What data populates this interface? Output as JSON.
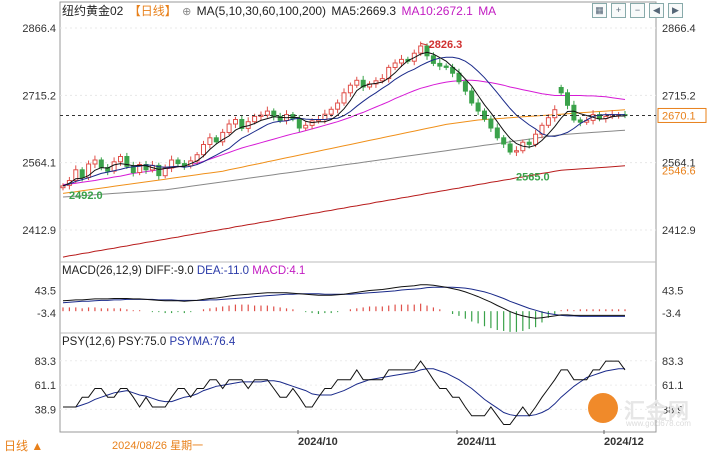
{
  "header": {
    "symbol": "纽约黄金02",
    "period": "【日线】",
    "add_icon": "plus-circle-icon",
    "ma_label": "MA(5,10,30,60,100,200)",
    "ma5": "MA5:2669.3",
    "ma10": "MA10:2672.1",
    "ma_tail": "MA"
  },
  "toolbar": {
    "icons": [
      "grid-icon",
      "zoom-in-icon",
      "zoom-out-icon",
      "chevron-left-icon",
      "chevron-right-icon"
    ]
  },
  "macd_header": {
    "name": "MACD(26,12,9)",
    "dif": "DIFF:-9.0",
    "dea": "DEA:-11.0",
    "macd": "MACD:4.1"
  },
  "psy_header": {
    "name": "PSY(12,6)",
    "psy": "PSY:75.0",
    "psyma": "PSYMA:76.4"
  },
  "footer": {
    "period": "日线",
    "cursor_date": "2024/08/26 星期一",
    "x_labels": [
      "2024/10",
      "2024/11",
      "2024/12"
    ]
  },
  "logo": {
    "text": "汇金网",
    "url_text": "www.gold678.com"
  },
  "colors": {
    "up": "#e0504a",
    "down": "#3aa24a",
    "ma5": "#111111",
    "ma10": "#1a2a8a",
    "ma30": "#d61ad6",
    "ma60": "#f0901a",
    "ma100": "#888888",
    "ma200": "#b81c1c",
    "current": "#e8801a"
  },
  "chart_data": [
    {
      "type": "candlestick",
      "y_ticks": [
        "2866.4",
        "2715.2",
        "2564.1",
        "2412.9"
      ],
      "ylim": [
        2350,
        2880
      ],
      "current_price": "2670.1",
      "ma200_label": "2546.6",
      "annotations": {
        "high": "2826.3",
        "low": "2565.0",
        "start_low": "2492.0"
      },
      "closes": [
        2512,
        2524,
        2548,
        2531,
        2561,
        2570,
        2553,
        2545,
        2566,
        2578,
        2556,
        2542,
        2560,
        2548,
        2558,
        2535,
        2552,
        2570,
        2562,
        2557,
        2568,
        2582,
        2605,
        2620,
        2611,
        2632,
        2651,
        2661,
        2641,
        2656,
        2668,
        2671,
        2680,
        2668,
        2659,
        2672,
        2663,
        2642,
        2648,
        2658,
        2661,
        2673,
        2684,
        2698,
        2721,
        2738,
        2749,
        2734,
        2741,
        2748,
        2753,
        2778,
        2788,
        2796,
        2792,
        2810,
        2826,
        2804,
        2787,
        2781,
        2778,
        2765,
        2746,
        2725,
        2698,
        2680,
        2662,
        2642,
        2620,
        2606,
        2588,
        2591,
        2610,
        2605,
        2628,
        2648,
        2665,
        2683,
        2721,
        2693,
        2660,
        2655,
        2659,
        2672,
        2663,
        2668,
        2672,
        2672,
        2670
      ],
      "opens": [
        2508,
        2513,
        2524,
        2548,
        2531,
        2561,
        2570,
        2553,
        2545,
        2566,
        2578,
        2556,
        2542,
        2560,
        2548,
        2558,
        2535,
        2552,
        2570,
        2562,
        2557,
        2568,
        2582,
        2605,
        2620,
        2611,
        2632,
        2651,
        2661,
        2641,
        2656,
        2668,
        2671,
        2680,
        2668,
        2659,
        2672,
        2663,
        2642,
        2648,
        2658,
        2661,
        2673,
        2684,
        2698,
        2721,
        2738,
        2749,
        2734,
        2741,
        2748,
        2753,
        2778,
        2788,
        2796,
        2792,
        2810,
        2826,
        2804,
        2787,
        2781,
        2778,
        2765,
        2746,
        2725,
        2698,
        2680,
        2662,
        2642,
        2620,
        2606,
        2588,
        2591,
        2610,
        2605,
        2628,
        2648,
        2665,
        2733,
        2721,
        2693,
        2660,
        2655,
        2659,
        2672,
        2663,
        2668,
        2672,
        2672
      ],
      "ma5": [
        2512,
        2518,
        2528,
        2529,
        2535,
        2547,
        2553,
        2552,
        2559,
        2562,
        2560,
        2557,
        2558,
        2557,
        2553,
        2549,
        2551,
        2553,
        2555,
        2556,
        2562,
        2568,
        2579,
        2594,
        2606,
        2616,
        2624,
        2637,
        2644,
        2647,
        2652,
        2659,
        2663,
        2667,
        2666,
        2665,
        2666,
        2665,
        2657,
        2654,
        2656,
        2656,
        2661,
        2671,
        2685,
        2704,
        2726,
        2736,
        2740,
        2742,
        2745,
        2754,
        2766,
        2781,
        2793,
        2800,
        2808,
        2812,
        2808,
        2800,
        2792,
        2779,
        2767,
        2752,
        2736,
        2715,
        2694,
        2676,
        2656,
        2636,
        2619,
        2607,
        2601,
        2599,
        2603,
        2614,
        2629,
        2645,
        2664,
        2679,
        2680,
        2674,
        2670,
        2666,
        2662,
        2663,
        2667,
        2669,
        2669
      ],
      "ma10": [
        2512,
        2516,
        2522,
        2526,
        2530,
        2535,
        2540,
        2543,
        2546,
        2549,
        2553,
        2555,
        2556,
        2559,
        2558,
        2555,
        2554,
        2555,
        2556,
        2554,
        2556,
        2560,
        2566,
        2574,
        2581,
        2589,
        2596,
        2608,
        2619,
        2626,
        2634,
        2642,
        2650,
        2655,
        2657,
        2658,
        2662,
        2664,
        2662,
        2661,
        2661,
        2661,
        2663,
        2664,
        2670,
        2679,
        2691,
        2702,
        2712,
        2721,
        2731,
        2740,
        2751,
        2760,
        2768,
        2774,
        2782,
        2789,
        2795,
        2799,
        2801,
        2801,
        2798,
        2792,
        2782,
        2769,
        2755,
        2738,
        2721,
        2703,
        2686,
        2671,
        2660,
        2649,
        2640,
        2629,
        2624,
        2623,
        2627,
        2632,
        2641,
        2652,
        2660,
        2668,
        2671,
        2672,
        2672,
        2672,
        2672
      ],
      "ma30": [
        2515,
        2516,
        2518,
        2520,
        2522,
        2524,
        2527,
        2529,
        2532,
        2534,
        2537,
        2540,
        2542,
        2544,
        2546,
        2548,
        2550,
        2552,
        2555,
        2557,
        2560,
        2563,
        2567,
        2572,
        2577,
        2582,
        2587,
        2592,
        2597,
        2601,
        2605,
        2609,
        2613,
        2617,
        2621,
        2625,
        2629,
        2632,
        2636,
        2640,
        2644,
        2648,
        2652,
        2656,
        2661,
        2666,
        2672,
        2677,
        2683,
        2689,
        2695,
        2701,
        2708,
        2714,
        2720,
        2726,
        2731,
        2735,
        2739,
        2742,
        2745,
        2747,
        2748,
        2749,
        2749,
        2748,
        2746,
        2744,
        2741,
        2738,
        2734,
        2731,
        2728,
        2725,
        2722,
        2719,
        2717,
        2715,
        2715,
        2715,
        2715,
        2715,
        2714,
        2714,
        2713,
        2712,
        2710,
        2708,
        2706
      ],
      "ma60": [
        2495,
        2497,
        2499,
        2501,
        2503,
        2505,
        2507,
        2509,
        2511,
        2513,
        2515,
        2517,
        2519,
        2521,
        2523,
        2525,
        2527,
        2529,
        2531,
        2533,
        2535,
        2537,
        2539,
        2541,
        2543,
        2545,
        2548,
        2551,
        2554,
        2557,
        2560,
        2563,
        2566,
        2569,
        2572,
        2575,
        2578,
        2581,
        2584,
        2587,
        2590,
        2593,
        2596,
        2599,
        2602,
        2605,
        2608,
        2611,
        2614,
        2617,
        2620,
        2623,
        2626,
        2629,
        2632,
        2635,
        2638,
        2641,
        2644,
        2647,
        2650,
        2652,
        2654,
        2656,
        2658,
        2660,
        2661,
        2662,
        2663,
        2664,
        2665,
        2666,
        2667,
        2668,
        2669,
        2670,
        2671,
        2672,
        2673,
        2674,
        2675,
        2676,
        2677,
        2678,
        2679,
        2680,
        2681,
        2682,
        2683
      ],
      "ma100": [
        2487,
        2488,
        2489,
        2490,
        2491,
        2492,
        2493,
        2494,
        2495,
        2496,
        2497,
        2498,
        2499,
        2500,
        2501,
        2502,
        2503,
        2505,
        2507,
        2509,
        2511,
        2513,
        2515,
        2517,
        2519,
        2521,
        2523,
        2525,
        2527,
        2529,
        2531,
        2533,
        2535,
        2537,
        2539,
        2541,
        2543,
        2545,
        2547,
        2549,
        2551,
        2553,
        2555,
        2557,
        2559,
        2561,
        2563,
        2565,
        2567,
        2569,
        2571,
        2573,
        2575,
        2577,
        2579,
        2581,
        2583,
        2585,
        2587,
        2589,
        2591,
        2593,
        2595,
        2597,
        2599,
        2601,
        2603,
        2605,
        2607,
        2609,
        2611,
        2613,
        2615,
        2617,
        2619,
        2621,
        2623,
        2625,
        2627,
        2628,
        2629,
        2630,
        2631,
        2632,
        2633,
        2634,
        2635,
        2636,
        2637
      ],
      "ma200": [
        2352,
        2355,
        2357,
        2360,
        2362,
        2365,
        2367,
        2370,
        2372,
        2375,
        2377,
        2380,
        2382,
        2385,
        2387,
        2390,
        2392,
        2395,
        2397,
        2400,
        2402,
        2405,
        2407,
        2410,
        2412,
        2415,
        2417,
        2420,
        2422,
        2425,
        2427,
        2430,
        2432,
        2435,
        2437,
        2440,
        2442,
        2445,
        2447,
        2450,
        2452,
        2455,
        2457,
        2460,
        2462,
        2465,
        2467,
        2470,
        2472,
        2475,
        2477,
        2480,
        2482,
        2485,
        2487,
        2490,
        2492,
        2495,
        2497,
        2500,
        2502,
        2505,
        2507,
        2510,
        2512,
        2515,
        2517,
        2520,
        2522,
        2525,
        2527,
        2530,
        2532,
        2535,
        2537,
        2540,
        2542,
        2545,
        2547,
        2548,
        2549,
        2550,
        2551,
        2552,
        2553,
        2554,
        2555,
        2556,
        2557
      ]
    },
    {
      "type": "bar+line",
      "name": "MACD",
      "y_ticks": [
        "43.5",
        "-3.4"
      ],
      "ylim": [
        -40,
        62
      ],
      "dif": [
        22,
        23,
        24,
        24,
        25,
        26,
        26,
        26,
        27,
        27,
        27,
        26,
        26,
        25,
        24,
        23,
        22,
        22,
        22,
        21,
        22,
        23,
        25,
        27,
        28,
        30,
        32,
        34,
        35,
        36,
        37,
        38,
        39,
        39,
        39,
        39,
        38,
        37,
        36,
        35,
        34,
        34,
        34,
        35,
        36,
        38,
        40,
        42,
        44,
        45,
        46,
        48,
        50,
        52,
        53,
        54,
        56,
        56,
        55,
        53,
        51,
        48,
        45,
        41,
        36,
        31,
        25,
        19,
        12,
        6,
        -1,
        -6,
        -10,
        -13,
        -15,
        -14,
        -12,
        -10,
        -8,
        -8,
        -9,
        -9,
        -9,
        -9,
        -9,
        -9,
        -9,
        -9,
        -9
      ],
      "dea": [
        18,
        19,
        20,
        21,
        21,
        22,
        23,
        23,
        24,
        24,
        25,
        25,
        25,
        25,
        25,
        24,
        24,
        24,
        23,
        23,
        23,
        23,
        23,
        24,
        24,
        25,
        26,
        27,
        28,
        29,
        31,
        32,
        33,
        34,
        35,
        36,
        36,
        37,
        37,
        37,
        37,
        36,
        36,
        36,
        36,
        36,
        37,
        38,
        39,
        40,
        41,
        42,
        43,
        45,
        46,
        47,
        48,
        50,
        51,
        51,
        51,
        51,
        50,
        49,
        47,
        44,
        41,
        37,
        32,
        27,
        21,
        16,
        11,
        6,
        2,
        -2,
        -5,
        -7,
        -9,
        -10,
        -10,
        -11,
        -11,
        -11,
        -11,
        -11,
        -11,
        -11,
        -11
      ],
      "macd": [
        8,
        8,
        8,
        6,
        8,
        8,
        6,
        6,
        6,
        6,
        4,
        2,
        2,
        0,
        -2,
        -2,
        -4,
        -4,
        -2,
        -4,
        -2,
        0,
        4,
        6,
        8,
        10,
        12,
        14,
        14,
        14,
        12,
        12,
        12,
        10,
        8,
        6,
        4,
        0,
        -2,
        -4,
        -6,
        -4,
        -4,
        -2,
        0,
        4,
        6,
        8,
        10,
        10,
        10,
        12,
        14,
        14,
        14,
        14,
        16,
        12,
        8,
        4,
        0,
        -6,
        -10,
        -16,
        -22,
        -26,
        -32,
        -36,
        -40,
        -42,
        -44,
        -44,
        -42,
        -38,
        -34,
        -24,
        -14,
        -6,
        2,
        4,
        2,
        4,
        4,
        4,
        4,
        4,
        4,
        4,
        4
      ]
    },
    {
      "type": "line",
      "name": "PSY",
      "y_ticks": [
        "83.3",
        "61.1",
        "38.9"
      ],
      "ylim": [
        20,
        95
      ],
      "psy": [
        41,
        41,
        41,
        50,
        50,
        58,
        58,
        50,
        50,
        58,
        58,
        50,
        41,
        50,
        41,
        41,
        41,
        50,
        58,
        58,
        50,
        58,
        58,
        66,
        66,
        58,
        66,
        66,
        66,
        58,
        66,
        66,
        66,
        58,
        50,
        50,
        58,
        50,
        41,
        41,
        50,
        58,
        58,
        66,
        66,
        66,
        75,
        66,
        66,
        66,
        66,
        75,
        75,
        75,
        75,
        75,
        83,
        75,
        66,
        58,
        58,
        50,
        50,
        41,
        33,
        33,
        33,
        41,
        33,
        25,
        25,
        33,
        41,
        33,
        41,
        50,
        58,
        66,
        75,
        75,
        66,
        66,
        66,
        75,
        75,
        83,
        83,
        83,
        75
      ],
      "psyma": [
        41,
        41,
        41,
        43,
        45,
        48,
        50,
        52,
        54,
        55,
        56,
        54,
        52,
        51,
        49,
        47,
        46,
        46,
        48,
        50,
        51,
        53,
        56,
        58,
        60,
        61,
        62,
        63,
        64,
        64,
        64,
        64,
        65,
        65,
        64,
        62,
        60,
        58,
        56,
        53,
        52,
        52,
        52,
        54,
        56,
        59,
        62,
        64,
        66,
        67,
        68,
        69,
        70,
        71,
        72,
        73,
        75,
        76,
        76,
        74,
        72,
        69,
        66,
        62,
        58,
        53,
        48,
        44,
        40,
        36,
        34,
        33,
        33,
        33,
        34,
        36,
        39,
        44,
        50,
        55,
        60,
        64,
        68,
        70,
        72,
        74,
        75,
        76,
        76
      ]
    }
  ]
}
